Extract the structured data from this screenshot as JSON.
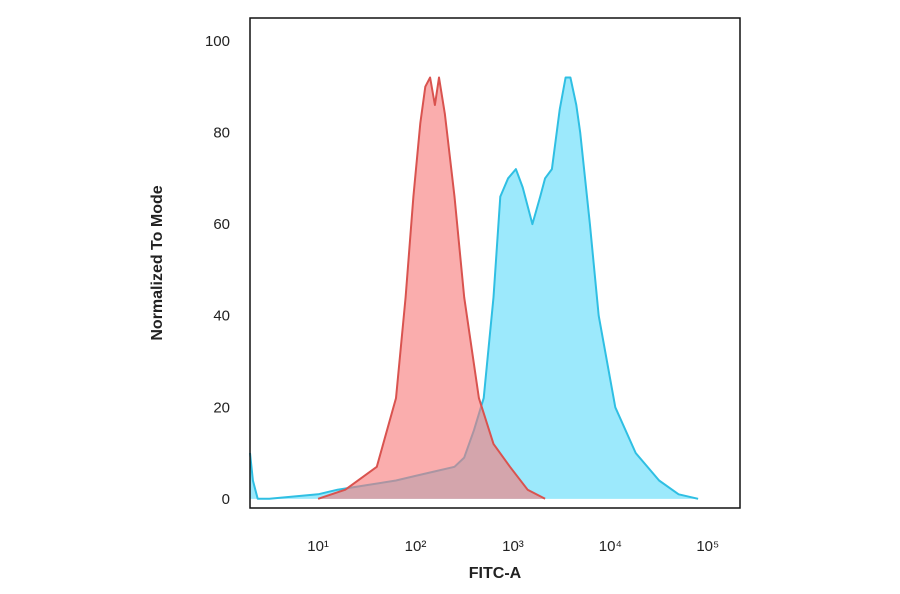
{
  "chart_data": {
    "type": "area",
    "x_label": "FITC-A",
    "y_label": "Normalized To Mode",
    "xscale": "log",
    "xlim": [
      2,
      214000
    ],
    "ylim": [
      -2,
      105
    ],
    "xticks": [
      {
        "value": 10,
        "label": "10¹"
      },
      {
        "value": 100,
        "label": "10²"
      },
      {
        "value": 1000,
        "label": "10³"
      },
      {
        "value": 10000,
        "label": "10⁴"
      },
      {
        "value": 100000,
        "label": "10⁵"
      }
    ],
    "yticks": [
      0,
      20,
      40,
      60,
      80,
      100
    ],
    "series": [
      {
        "color": "#2fbfe3",
        "fill": "#5fdcfa",
        "x": [
          2,
          2.14,
          2.4,
          3.16,
          10,
          15.8,
          31.6,
          63,
          100,
          158,
          251,
          316,
          398,
          501,
          631,
          741,
          891,
          1072,
          1259,
          1585,
          1905,
          2138,
          2512,
          3020,
          3467,
          3890,
          4467,
          4898,
          6166,
          7586,
          11220,
          18197,
          31623,
          50119,
          79433
        ],
        "values": [
          10,
          4,
          0,
          0,
          1,
          2,
          3,
          4,
          5,
          6,
          7,
          9,
          15,
          22,
          44,
          66,
          70,
          72,
          68,
          60,
          66,
          70,
          72,
          85,
          92,
          92,
          86,
          80,
          60,
          40,
          20,
          10,
          4,
          1,
          0
        ]
      },
      {
        "color": "#d9534f",
        "fill": "#f77a7a",
        "x": [
          10,
          19,
          40,
          63,
          79,
          95,
          112,
          126,
          141,
          158,
          174,
          200,
          251,
          316,
          447,
          631,
          933,
          1413,
          2138
        ],
        "values": [
          0,
          2,
          7,
          22,
          44,
          66,
          82,
          90,
          92,
          86,
          92,
          84,
          66,
          44,
          22,
          12,
          7,
          2,
          0
        ]
      }
    ]
  }
}
